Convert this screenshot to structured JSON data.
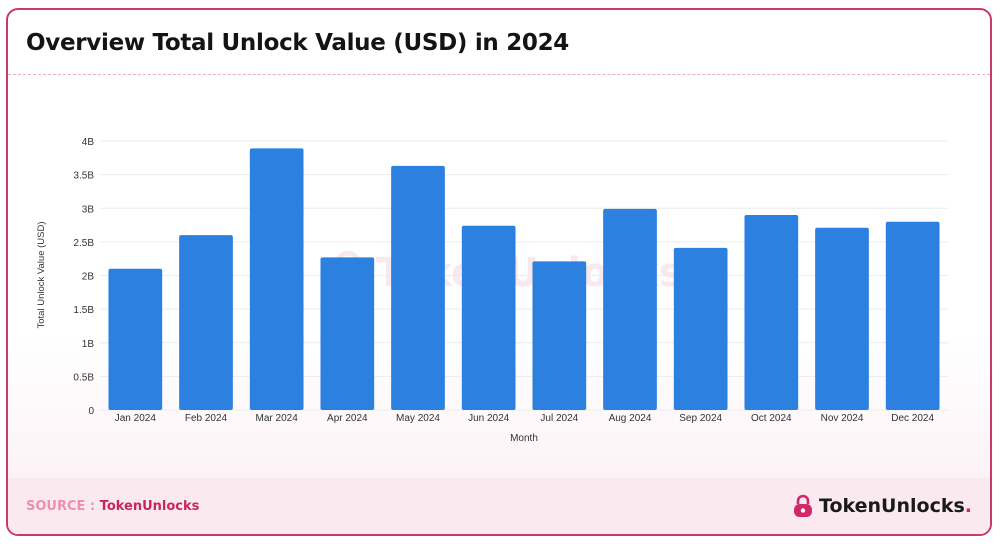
{
  "title": "Overview Total Unlock Value (USD) in 2024",
  "source": {
    "label": "SOURCE :",
    "value": "TokenUnlocks"
  },
  "brand": {
    "name": "TokenUnlocks",
    "dot": "."
  },
  "watermark": "TokenUnlocks.",
  "colors": {
    "bar": "#2b80e0",
    "accent": "#d2286a",
    "border": "#c73a6a"
  },
  "chart_data": {
    "type": "bar",
    "xlabel": "Month",
    "ylabel": "Total Unlock Value (USD)",
    "ylim": [
      0,
      4000000000
    ],
    "yticks": [
      0,
      500000000,
      1000000000,
      1500000000,
      2000000000,
      2500000000,
      3000000000,
      3500000000,
      4000000000
    ],
    "ytick_labels": [
      "0",
      "0.5B",
      "1B",
      "1.5B",
      "2B",
      "2.5B",
      "3B",
      "3.5B",
      "4B"
    ],
    "categories": [
      "Jan 2024",
      "Feb 2024",
      "Mar 2024",
      "Apr 2024",
      "May 2024",
      "Jun 2024",
      "Jul 2024",
      "Aug 2024",
      "Sep 2024",
      "Oct 2024",
      "Nov 2024",
      "Dec 2024"
    ],
    "values": [
      2100000000,
      2600000000,
      3890000000,
      2270000000,
      3630000000,
      2740000000,
      2210000000,
      2990000000,
      2410000000,
      2900000000,
      2710000000,
      2800000000
    ],
    "grid": true,
    "legend": "none"
  }
}
